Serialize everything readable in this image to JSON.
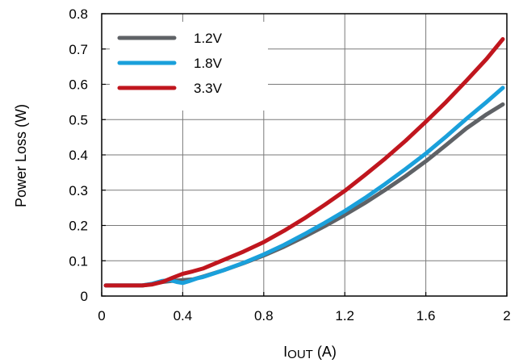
{
  "chart_data": {
    "type": "line",
    "xlabel": "I",
    "xlabel_sub": "OUT",
    "xlabel_unit": " (A)",
    "ylabel": "Power Loss (W)",
    "xlim": [
      0,
      2
    ],
    "ylim": [
      0,
      0.8
    ],
    "xticks": [
      0,
      0.4,
      0.8,
      1.2,
      1.6,
      2
    ],
    "xtick_labels": [
      "0",
      "0.4",
      "0.8",
      "1.2",
      "1.6",
      "2"
    ],
    "yticks": [
      0,
      0.1,
      0.2,
      0.3,
      0.4,
      0.5,
      0.6,
      0.7,
      0.8
    ],
    "ytick_labels": [
      "0",
      "0.1",
      "0.2",
      "0.3",
      "0.4",
      "0.5",
      "0.6",
      "0.7",
      "0.8"
    ],
    "grid": true,
    "legend_position": "top-left",
    "series": [
      {
        "name": "1.2V",
        "color": "#5f6266",
        "points": [
          [
            0.02,
            0.03
          ],
          [
            0.1,
            0.03
          ],
          [
            0.2,
            0.03
          ],
          [
            0.25,
            0.034
          ],
          [
            0.3,
            0.04
          ],
          [
            0.35,
            0.043
          ],
          [
            0.4,
            0.045
          ],
          [
            0.45,
            0.047
          ],
          [
            0.5,
            0.055
          ],
          [
            0.6,
            0.073
          ],
          [
            0.7,
            0.093
          ],
          [
            0.8,
            0.115
          ],
          [
            0.9,
            0.14
          ],
          [
            1.0,
            0.168
          ],
          [
            1.1,
            0.198
          ],
          [
            1.2,
            0.23
          ],
          [
            1.3,
            0.264
          ],
          [
            1.4,
            0.301
          ],
          [
            1.5,
            0.34
          ],
          [
            1.6,
            0.382
          ],
          [
            1.7,
            0.428
          ],
          [
            1.8,
            0.475
          ],
          [
            1.9,
            0.515
          ],
          [
            1.98,
            0.543
          ]
        ]
      },
      {
        "name": "1.8V",
        "color": "#1aa0db",
        "points": [
          [
            0.02,
            0.03
          ],
          [
            0.1,
            0.03
          ],
          [
            0.2,
            0.03
          ],
          [
            0.25,
            0.035
          ],
          [
            0.3,
            0.043
          ],
          [
            0.34,
            0.045
          ],
          [
            0.37,
            0.04
          ],
          [
            0.4,
            0.037
          ],
          [
            0.43,
            0.042
          ],
          [
            0.47,
            0.05
          ],
          [
            0.5,
            0.054
          ],
          [
            0.6,
            0.073
          ],
          [
            0.7,
            0.094
          ],
          [
            0.8,
            0.118
          ],
          [
            0.9,
            0.145
          ],
          [
            1.0,
            0.175
          ],
          [
            1.1,
            0.207
          ],
          [
            1.2,
            0.241
          ],
          [
            1.3,
            0.278
          ],
          [
            1.4,
            0.318
          ],
          [
            1.5,
            0.36
          ],
          [
            1.6,
            0.404
          ],
          [
            1.7,
            0.452
          ],
          [
            1.8,
            0.502
          ],
          [
            1.9,
            0.55
          ],
          [
            1.98,
            0.59
          ]
        ]
      },
      {
        "name": "3.3V",
        "color": "#c0161e",
        "points": [
          [
            0.02,
            0.03
          ],
          [
            0.1,
            0.03
          ],
          [
            0.2,
            0.03
          ],
          [
            0.25,
            0.033
          ],
          [
            0.3,
            0.04
          ],
          [
            0.35,
            0.052
          ],
          [
            0.4,
            0.063
          ],
          [
            0.45,
            0.07
          ],
          [
            0.5,
            0.078
          ],
          [
            0.6,
            0.102
          ],
          [
            0.7,
            0.126
          ],
          [
            0.8,
            0.153
          ],
          [
            0.9,
            0.185
          ],
          [
            1.0,
            0.22
          ],
          [
            1.1,
            0.258
          ],
          [
            1.2,
            0.298
          ],
          [
            1.3,
            0.343
          ],
          [
            1.4,
            0.39
          ],
          [
            1.5,
            0.44
          ],
          [
            1.6,
            0.494
          ],
          [
            1.7,
            0.55
          ],
          [
            1.8,
            0.61
          ],
          [
            1.9,
            0.672
          ],
          [
            1.98,
            0.728
          ]
        ]
      }
    ]
  }
}
